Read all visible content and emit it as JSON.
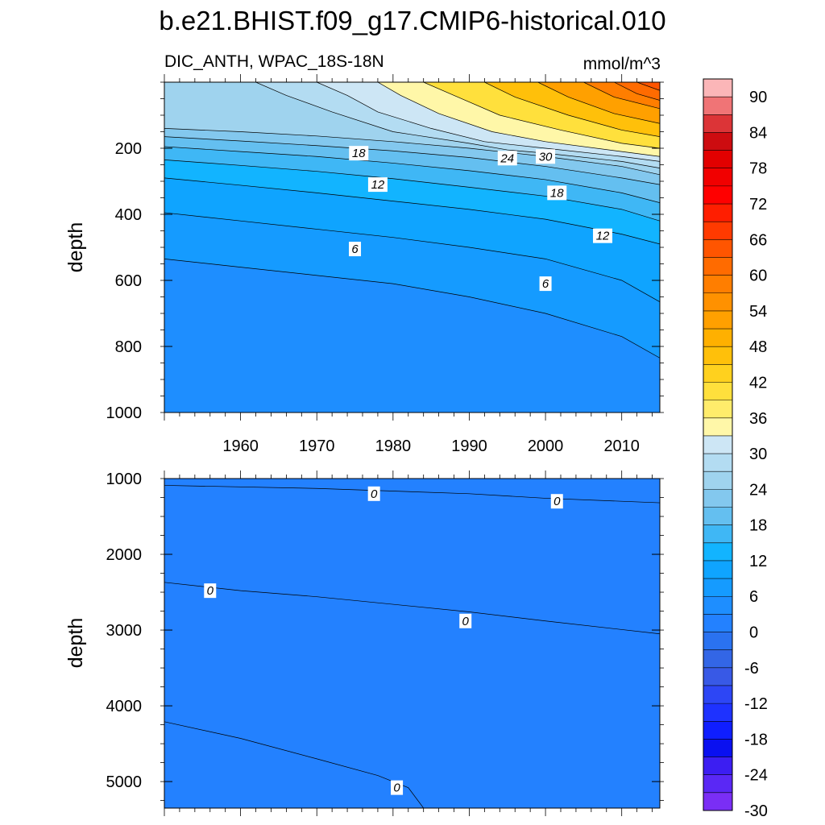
{
  "chart_data": [
    {
      "type": "contour",
      "panel": "upper",
      "title": "b.e21.BHIST.f09_g17.CMIP6-historical.010",
      "subtitle_left": "DIC_ANTH, WPAC_18S-18N",
      "subtitle_right": "mmol/m^3",
      "ylabel": "depth",
      "xlabel": "",
      "xlim": [
        1950,
        2015
      ],
      "ylim": [
        1000,
        0
      ],
      "x_ticks": [
        1960,
        1970,
        1980,
        1990,
        2000,
        2010
      ],
      "x_tick_labels": [
        "1960",
        "1970",
        "1980",
        "1990",
        "2000",
        "2010"
      ],
      "y_ticks": [
        200,
        400,
        600,
        800,
        1000
      ],
      "y_tick_labels": [
        "200",
        "400",
        "600",
        "800",
        "1000"
      ],
      "contour_interval": 3,
      "contours": [
        {
          "level": 0,
          "points": [
            [
              1950,
              1000
            ],
            [
              2015,
              1000
            ]
          ]
        },
        {
          "level": 3,
          "points": [
            [
              1950,
              535
            ],
            [
              1960,
              560
            ],
            [
              1970,
              585
            ],
            [
              1980,
              610
            ],
            [
              1990,
              650
            ],
            [
              2000,
              700
            ],
            [
              2010,
              770
            ],
            [
              2015,
              835
            ]
          ]
        },
        {
          "level": 6,
          "points": [
            [
              1950,
              395
            ],
            [
              1960,
              420
            ],
            [
              1970,
              445
            ],
            [
              1980,
              470
            ],
            [
              1990,
              500
            ],
            [
              2000,
              535
            ],
            [
              2010,
              600
            ],
            [
              2015,
              665
            ]
          ]
        },
        {
          "level": 9,
          "points": [
            [
              1950,
              290
            ],
            [
              1960,
              312
            ],
            [
              1970,
              335
            ],
            [
              1980,
              360
            ],
            [
              1990,
              385
            ],
            [
              2000,
              415
            ],
            [
              2010,
              460
            ],
            [
              2015,
              490
            ]
          ]
        },
        {
          "level": 12,
          "points": [
            [
              1950,
              235
            ],
            [
              1960,
              252
            ],
            [
              1970,
              270
            ],
            [
              1980,
              292
            ],
            [
              1990,
              318
            ],
            [
              2000,
              345
            ],
            [
              2010,
              385
            ],
            [
              2015,
              420
            ]
          ]
        },
        {
          "level": 15,
          "points": [
            [
              1950,
              195
            ],
            [
              1960,
              210
            ],
            [
              1970,
              225
            ],
            [
              1980,
              245
            ],
            [
              1990,
              268
            ],
            [
              2000,
              295
            ],
            [
              2010,
              335
            ],
            [
              2015,
              365
            ]
          ]
        },
        {
          "level": 18,
          "points": [
            [
              1950,
              165
            ],
            [
              1960,
              178
            ],
            [
              1970,
              192
            ],
            [
              1980,
              208
            ],
            [
              1990,
              228
            ],
            [
              2000,
              255
            ],
            [
              2010,
              290
            ],
            [
              2015,
              310
            ]
          ]
        },
        {
          "level": 21,
          "points": [
            [
              1950,
              140
            ],
            [
              1960,
              150
            ],
            [
              1970,
              163
            ],
            [
              1980,
              180
            ],
            [
              1990,
              200
            ],
            [
              2000,
              225
            ],
            [
              2010,
              255
            ],
            [
              2015,
              280
            ]
          ]
        },
        {
          "level": 24,
          "points": [
            [
              1962,
              0
            ],
            [
              1966,
              40
            ],
            [
              1972,
              90
            ],
            [
              1980,
              150
            ],
            [
              1990,
              185
            ],
            [
              1995,
              205
            ],
            [
              2000,
              215
            ],
            [
              2010,
              240
            ],
            [
              2015,
              260
            ]
          ]
        },
        {
          "level": 27,
          "points": [
            [
              1970,
              0
            ],
            [
              1974,
              40
            ],
            [
              1978,
              90
            ],
            [
              1985,
              140
            ],
            [
              1992,
              180
            ],
            [
              2000,
              200
            ],
            [
              2010,
              225
            ],
            [
              2015,
              240
            ]
          ]
        },
        {
          "level": 30,
          "points": [
            [
              1978,
              0
            ],
            [
              1981,
              40
            ],
            [
              1986,
              95
            ],
            [
              1993,
              150
            ],
            [
              2000,
              180
            ],
            [
              2010,
              210
            ],
            [
              2015,
              225
            ]
          ]
        },
        {
          "level": 36,
          "points": [
            [
              1984,
              0
            ],
            [
              1988,
              40
            ],
            [
              1994,
              100
            ],
            [
              2002,
              145
            ],
            [
              2010,
              185
            ],
            [
              2015,
              200
            ]
          ]
        },
        {
          "level": 42,
          "points": [
            [
              1992,
              0
            ],
            [
              1996,
              45
            ],
            [
              2003,
              100
            ],
            [
              2010,
              145
            ],
            [
              2015,
              165
            ]
          ]
        },
        {
          "level": 48,
          "points": [
            [
              1999,
              0
            ],
            [
              2003,
              45
            ],
            [
              2009,
              95
            ],
            [
              2015,
              125
            ]
          ]
        },
        {
          "level": 54,
          "points": [
            [
              2005,
              0
            ],
            [
              2009,
              45
            ],
            [
              2015,
              80
            ]
          ]
        },
        {
          "level": 57,
          "points": [
            [
              2009,
              0
            ],
            [
              2012,
              35
            ],
            [
              2015,
              55
            ]
          ]
        },
        {
          "level": 60,
          "points": [
            [
              2012,
              0
            ],
            [
              2015,
              25
            ]
          ]
        }
      ],
      "contour_labels": [
        {
          "text": "18",
          "x": 1975.5,
          "y": 215
        },
        {
          "text": "24",
          "x": 1995,
          "y": 230
        },
        {
          "text": "30",
          "x": 2000,
          "y": 225
        },
        {
          "text": "12",
          "x": 1978,
          "y": 310
        },
        {
          "text": "18",
          "x": 2001.5,
          "y": 335
        },
        {
          "text": "12",
          "x": 2007.5,
          "y": 465
        },
        {
          "text": "6",
          "x": 1975,
          "y": 505
        },
        {
          "text": "6",
          "x": 2000,
          "y": 610
        }
      ]
    },
    {
      "type": "contour",
      "panel": "lower",
      "ylabel": "depth",
      "xlabel": "",
      "xlim": [
        1950,
        2015
      ],
      "ylim": [
        5350,
        1000
      ],
      "y_ticks": [
        1000,
        2000,
        3000,
        4000,
        5000
      ],
      "y_tick_labels": [
        "1000",
        "2000",
        "3000",
        "4000",
        "5000"
      ],
      "contours": [
        {
          "level": 0,
          "points": [
            [
              1950,
              1090
            ],
            [
              1970,
              1130
            ],
            [
              1990,
              1200
            ],
            [
              2000,
              1260
            ],
            [
              2015,
              1320
            ]
          ]
        },
        {
          "level": 0,
          "points": [
            [
              1950,
              2370
            ],
            [
              1960,
              2480
            ],
            [
              1970,
              2560
            ],
            [
              1990,
              2760
            ],
            [
              2000,
              2880
            ],
            [
              2015,
              3050
            ]
          ]
        },
        {
          "level": 0,
          "points": [
            [
              1950,
              4210
            ],
            [
              1960,
              4430
            ],
            [
              1970,
              4700
            ],
            [
              1978,
              4920
            ],
            [
              1982,
              5080
            ],
            [
              1984,
              5350
            ]
          ]
        }
      ],
      "contour_labels": [
        {
          "text": "0",
          "x": 1977.5,
          "y": 1200
        },
        {
          "text": "0",
          "x": 2001.5,
          "y": 1300
        },
        {
          "text": "0",
          "x": 1956,
          "y": 2480
        },
        {
          "text": "0",
          "x": 1989.5,
          "y": 2880
        },
        {
          "text": "0",
          "x": 1980.5,
          "y": 5080
        }
      ]
    }
  ],
  "colorbar": {
    "labels": [
      "90",
      "84",
      "78",
      "72",
      "66",
      "60",
      "54",
      "48",
      "42",
      "36",
      "30",
      "24",
      "18",
      "12",
      "6",
      "0",
      "-6",
      "-12",
      "-18",
      "-24",
      "-30"
    ],
    "colors_top_to_bottom": [
      "#fbb6b8",
      "#f07476",
      "#dc3437",
      "#cd0c10",
      "#e20000",
      "#f10000",
      "#ff0000",
      "#ff1e00",
      "#ff3a00",
      "#ff5500",
      "#ff6b00",
      "#ff7e00",
      "#ff9100",
      "#ffa000",
      "#ffb000",
      "#ffc00a",
      "#ffd11e",
      "#ffe03c",
      "#ffec6b",
      "#fff7a8",
      "#cde6f5",
      "#b3dcf2",
      "#9fd3ee",
      "#83c8ee",
      "#64bff0",
      "#3fb7f5",
      "#12b4ff",
      "#0fa4ff",
      "#159bff",
      "#1e8eff",
      "#2381ff",
      "#2a72f0",
      "#3366e6",
      "#3859e6",
      "#2d46f5",
      "#1e32ff",
      "#0f1eff",
      "#0a10f0",
      "#3c1ef2",
      "#5a28f5",
      "#7a2ef5"
    ]
  }
}
